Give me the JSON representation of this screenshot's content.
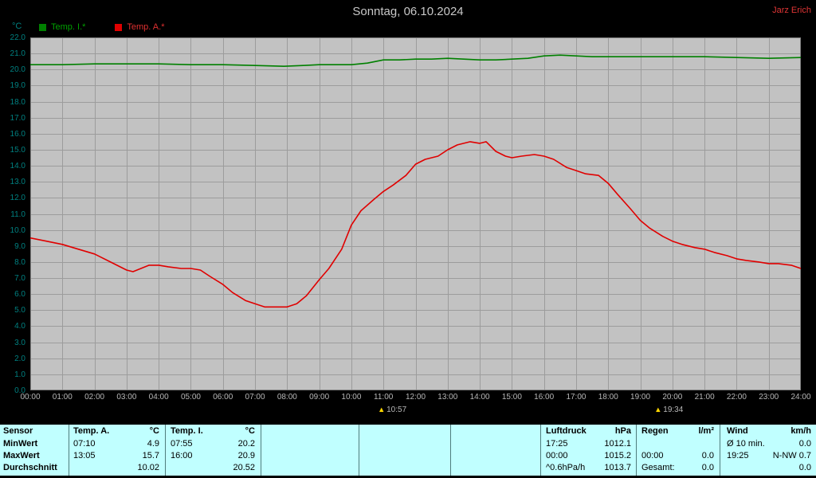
{
  "header": {
    "title": "Sonntag, 06.10.2024",
    "author": "Jarz Erich"
  },
  "legend": {
    "temp_i": "Temp. I.*",
    "temp_a": "Temp. A.*"
  },
  "chart_data": {
    "type": "line",
    "title": "Sonntag, 06.10.2024",
    "xlabel": "",
    "ylabel": "°C",
    "ylim": [
      0,
      22
    ],
    "xlim_hours": [
      0,
      24
    ],
    "grid": true,
    "legend_position": "top-left",
    "y_ticks": [
      "22.0",
      "21.0",
      "20.0",
      "19.0",
      "18.0",
      "17.0",
      "16.0",
      "15.0",
      "14.0",
      "13.0",
      "12.0",
      "11.0",
      "10.0",
      "9.0",
      "8.0",
      "7.0",
      "6.0",
      "5.0",
      "4.0",
      "3.0",
      "2.0",
      "1.0",
      "0.0"
    ],
    "x_ticks": [
      "00:00",
      "01:00",
      "02:00",
      "03:00",
      "04:00",
      "05:00",
      "06:00",
      "07:00",
      "08:00",
      "09:00",
      "10:00",
      "11:00",
      "12:00",
      "13:00",
      "14:00",
      "15:00",
      "16:00",
      "17:00",
      "18:00",
      "19:00",
      "20:00",
      "21:00",
      "22:00",
      "23:00",
      "24:00"
    ],
    "series": [
      {
        "name": "Temp. I.*",
        "color": "#008000",
        "points": [
          [
            0,
            20.3
          ],
          [
            1,
            20.3
          ],
          [
            2,
            20.35
          ],
          [
            3,
            20.35
          ],
          [
            4,
            20.35
          ],
          [
            5,
            20.3
          ],
          [
            6,
            20.3
          ],
          [
            7,
            20.25
          ],
          [
            7.9,
            20.2
          ],
          [
            8.5,
            20.25
          ],
          [
            9,
            20.3
          ],
          [
            10,
            20.3
          ],
          [
            10.5,
            20.4
          ],
          [
            11,
            20.6
          ],
          [
            11.5,
            20.6
          ],
          [
            12,
            20.65
          ],
          [
            12.5,
            20.65
          ],
          [
            13,
            20.7
          ],
          [
            13.5,
            20.65
          ],
          [
            14,
            20.6
          ],
          [
            14.5,
            20.6
          ],
          [
            15,
            20.65
          ],
          [
            15.5,
            20.7
          ],
          [
            16,
            20.85
          ],
          [
            16.5,
            20.9
          ],
          [
            17,
            20.85
          ],
          [
            17.5,
            20.8
          ],
          [
            18,
            20.8
          ],
          [
            19,
            20.8
          ],
          [
            20,
            20.8
          ],
          [
            21,
            20.8
          ],
          [
            22,
            20.75
          ],
          [
            23,
            20.7
          ],
          [
            24,
            20.75
          ]
        ]
      },
      {
        "name": "Temp. A.*",
        "color": "#e00000",
        "points": [
          [
            0,
            9.5
          ],
          [
            0.5,
            9.3
          ],
          [
            1,
            9.1
          ],
          [
            1.5,
            8.8
          ],
          [
            2,
            8.5
          ],
          [
            2.5,
            8.0
          ],
          [
            3,
            7.5
          ],
          [
            3.2,
            7.4
          ],
          [
            3.7,
            7.8
          ],
          [
            4,
            7.8
          ],
          [
            4.3,
            7.7
          ],
          [
            4.7,
            7.6
          ],
          [
            5,
            7.6
          ],
          [
            5.3,
            7.5
          ],
          [
            5.6,
            7.1
          ],
          [
            6,
            6.6
          ],
          [
            6.3,
            6.1
          ],
          [
            6.7,
            5.6
          ],
          [
            7,
            5.4
          ],
          [
            7.3,
            5.2
          ],
          [
            7.7,
            5.2
          ],
          [
            8,
            5.2
          ],
          [
            8.3,
            5.4
          ],
          [
            8.6,
            5.9
          ],
          [
            9,
            6.9
          ],
          [
            9.3,
            7.6
          ],
          [
            9.7,
            8.8
          ],
          [
            10,
            10.3
          ],
          [
            10.3,
            11.2
          ],
          [
            10.7,
            11.9
          ],
          [
            11,
            12.4
          ],
          [
            11.3,
            12.8
          ],
          [
            11.7,
            13.4
          ],
          [
            12,
            14.1
          ],
          [
            12.3,
            14.4
          ],
          [
            12.7,
            14.6
          ],
          [
            13,
            15.0
          ],
          [
            13.3,
            15.3
          ],
          [
            13.7,
            15.5
          ],
          [
            14,
            15.4
          ],
          [
            14.2,
            15.5
          ],
          [
            14.5,
            14.9
          ],
          [
            14.8,
            14.6
          ],
          [
            15,
            14.5
          ],
          [
            15.3,
            14.6
          ],
          [
            15.7,
            14.7
          ],
          [
            16,
            14.6
          ],
          [
            16.3,
            14.4
          ],
          [
            16.7,
            13.9
          ],
          [
            17,
            13.7
          ],
          [
            17.3,
            13.5
          ],
          [
            17.7,
            13.4
          ],
          [
            18,
            12.9
          ],
          [
            18.3,
            12.2
          ],
          [
            18.7,
            11.3
          ],
          [
            19,
            10.6
          ],
          [
            19.3,
            10.1
          ],
          [
            19.7,
            9.6
          ],
          [
            20,
            9.3
          ],
          [
            20.3,
            9.1
          ],
          [
            20.7,
            8.9
          ],
          [
            21,
            8.8
          ],
          [
            21.3,
            8.6
          ],
          [
            21.7,
            8.4
          ],
          [
            22,
            8.2
          ],
          [
            22.3,
            8.1
          ],
          [
            22.7,
            8.0
          ],
          [
            23,
            7.9
          ],
          [
            23.3,
            7.9
          ],
          [
            23.7,
            7.8
          ],
          [
            24,
            7.6
          ]
        ]
      }
    ],
    "markers": [
      {
        "label": "10:57",
        "time": "10:57"
      },
      {
        "label": "19:34",
        "time": "19:34"
      }
    ]
  },
  "summary": {
    "row_labels": [
      "Sensor",
      "MinWert",
      "MaxWert",
      "Durchschnitt"
    ],
    "temp_a": {
      "header": "Temp. A.",
      "unit": "°C",
      "min_time": "07:10",
      "min": "4.9",
      "max_time": "13:05",
      "max": "15.7",
      "avg": "10.02"
    },
    "temp_i": {
      "header": "Temp. I.",
      "unit": "°C",
      "min_time": "07:55",
      "min": "20.2",
      "max_time": "16:00",
      "max": "20.9",
      "avg": "20.52"
    },
    "pressure": {
      "header": "Luftdruck",
      "unit": "hPa",
      "min_time": "17:25",
      "min": "1012.1",
      "max_time": "00:00",
      "max": "1015.2",
      "trend": "^0.6hPa/h",
      "avg": "1013.7"
    },
    "rain": {
      "header": "Regen",
      "unit": "l/m²",
      "max_time": "00:00",
      "max": "0.0",
      "total_label": "Gesamt:",
      "total": "0.0"
    },
    "wind": {
      "header": "Wind",
      "unit": "km/h",
      "avg10_label": "Ø 10 min.",
      "avg10": "0.0",
      "max_time": "19:25",
      "max": "N-NW 0.7",
      "avg": "0.0"
    }
  },
  "colors": {
    "plot_bg": "#c2c2c2",
    "grid": "#9c9c9c",
    "border": "#808080",
    "axis_text": "#008080",
    "tick_text": "#b8b8b8",
    "table_bg": "#c0ffff",
    "title_text": "#c8c8c8",
    "marker_icon": "#ffd800",
    "temp_i_line": "#008000",
    "temp_a_line": "#e00000"
  }
}
